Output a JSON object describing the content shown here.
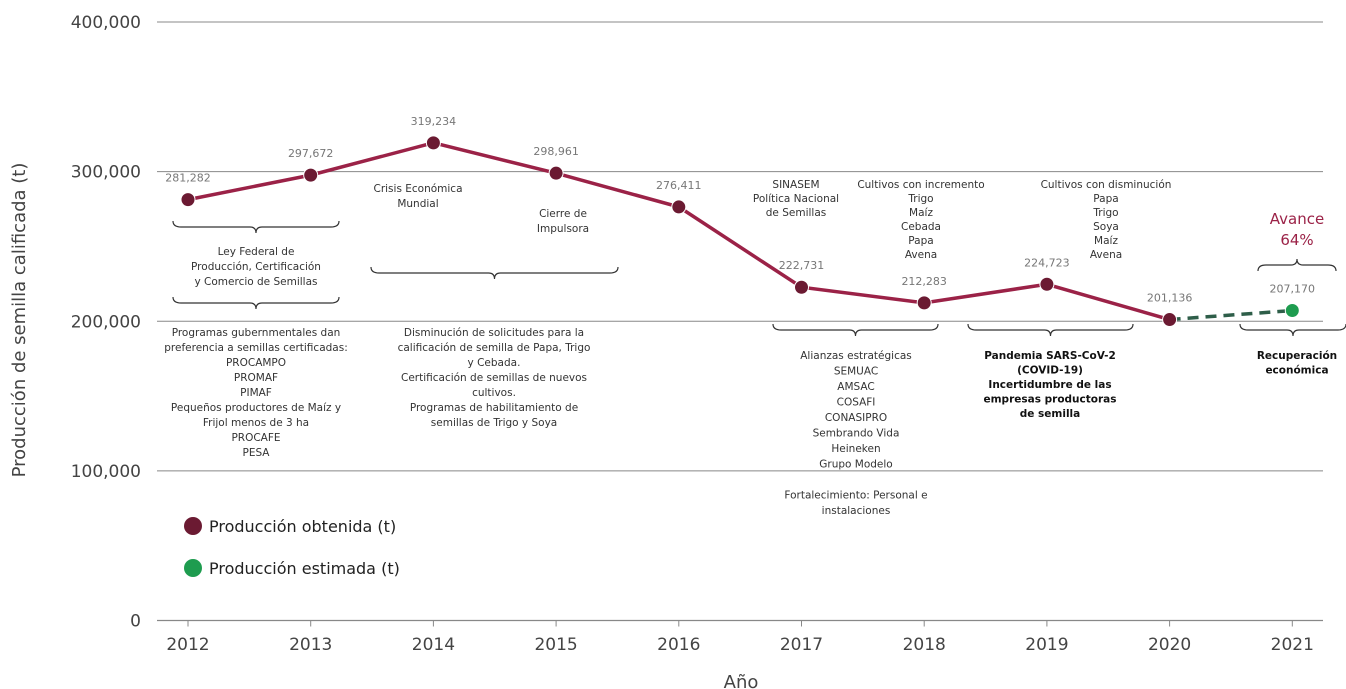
{
  "colors": {
    "obtained": "#9b2247",
    "obtained_marker": "#6b1a32",
    "estimated": "#2e5e49",
    "estimated_marker": "#1e9c4f",
    "grid": "#888888"
  },
  "chart_data": {
    "type": "line",
    "xlabel": "Año",
    "ylabel": "Producción de semilla calificada (t)",
    "ylim": [
      0,
      400000
    ],
    "yticks": [
      {
        "value": 0,
        "label": "0"
      },
      {
        "value": 100000,
        "label": "100,000"
      },
      {
        "value": 200000,
        "label": "200,000"
      },
      {
        "value": 300000,
        "label": "300,000"
      },
      {
        "value": 400000,
        "label": "400,000"
      }
    ],
    "categories": [
      "2012",
      "2013",
      "2014",
      "2015",
      "2016",
      "2017",
      "2018",
      "2019",
      "2020",
      "2021"
    ],
    "grid": true,
    "legend_position": "bottom-left",
    "series": [
      {
        "name": "Producción obtenida (t)",
        "style": "solid",
        "points": [
          {
            "x": "2012",
            "y": 281282,
            "label": "281,282"
          },
          {
            "x": "2013",
            "y": 297672,
            "label": "297,672"
          },
          {
            "x": "2014",
            "y": 319234,
            "label": "319,234"
          },
          {
            "x": "2015",
            "y": 298961,
            "label": "298,961"
          },
          {
            "x": "2016",
            "y": 276411,
            "label": "276,411"
          },
          {
            "x": "2017",
            "y": 222731,
            "label": "222,731"
          },
          {
            "x": "2018",
            "y": 212283,
            "label": "212,283"
          },
          {
            "x": "2019",
            "y": 224723,
            "label": "224,723"
          },
          {
            "x": "2020",
            "y": 201136,
            "label": "201,136"
          }
        ]
      },
      {
        "name": "Producción estimada (t)",
        "style": "dashed",
        "points": [
          {
            "x": "2020",
            "y": 201136,
            "label": null
          },
          {
            "x": "2021",
            "y": 207170,
            "label": "207,170"
          }
        ]
      }
    ],
    "avance": [
      "Avance",
      "64%"
    ],
    "annotations": {
      "crisis": [
        "Crisis Económica",
        "Mundial"
      ],
      "cierre": [
        "Cierre de",
        "Impulsora"
      ],
      "sinasem": [
        "SINASEM",
        "Política Nacional",
        "de Semillas"
      ],
      "incremento": [
        "Cultivos con incremento",
        "Trigo",
        "Maíz",
        "Cebada",
        "Papa",
        "Avena"
      ],
      "disminucion": [
        "Cultivos con disminución",
        "Papa",
        "Trigo",
        "Soya",
        "Maíz",
        "Avena"
      ],
      "ley": [
        "Ley Federal de",
        "Producción, Certificación",
        "y Comercio de Semillas"
      ],
      "programas": [
        "Programas gubernmentales dan",
        "preferencia a semillas certificadas:",
        "PROCAMPO",
        "PROMAF",
        "PIMAF",
        "Pequeños productores de Maíz y",
        "Frijol menos de 3 ha",
        "PROCAFE",
        "PESA"
      ],
      "solicitudes": [
        "Disminución de solicitudes para la",
        "calificación de semilla de Papa, Trigo",
        "y Cebada.",
        "Certificación de semillas de nuevos",
        "cultivos.",
        "Programas de habilitamiento de",
        "semillas de Trigo y Soya"
      ],
      "alianzas": [
        "Alianzas estratégicas",
        "SEMUAC",
        "AMSAC",
        "COSAFI",
        "CONASIPRO",
        "Sembrando Vida",
        "Heineken",
        "Grupo Modelo",
        "",
        "Fortalecimiento: Personal e",
        "instalaciones"
      ],
      "pandemia": [
        "Pandemia SARS-CoV-2",
        "(COVID-19)",
        "Incertidumbre de las",
        "empresas productoras",
        "de semilla"
      ],
      "recuperacion": [
        "Recuperación",
        "económica"
      ]
    }
  }
}
